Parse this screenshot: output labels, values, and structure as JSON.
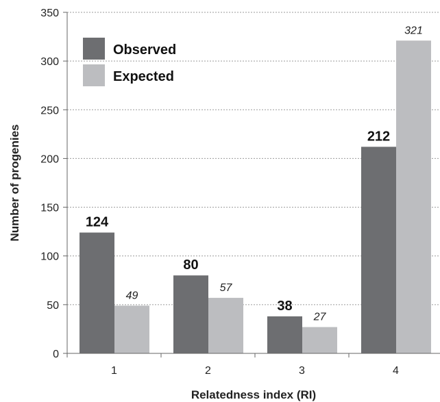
{
  "chart_data": {
    "type": "bar",
    "title": "",
    "xlabel": "Relatedness index (RI)",
    "ylabel": "Number of progenies",
    "categories": [
      "1",
      "2",
      "3",
      "4"
    ],
    "ylim": [
      0,
      350
    ],
    "yticks": [
      "0",
      "50",
      "100",
      "150",
      "200",
      "250",
      "300",
      "350"
    ],
    "grid": "horizontal dashed",
    "legend_position": "top-left",
    "series": [
      {
        "name": "Observed",
        "values": [
          124,
          80,
          38,
          212
        ],
        "labels": [
          "124",
          "80",
          "38",
          "212"
        ],
        "color": "#6d6e71"
      },
      {
        "name": "Expected",
        "values": [
          49,
          57,
          27,
          321
        ],
        "labels": [
          "49",
          "57",
          "27",
          "321"
        ],
        "color": "#bcbdc0"
      }
    ]
  }
}
